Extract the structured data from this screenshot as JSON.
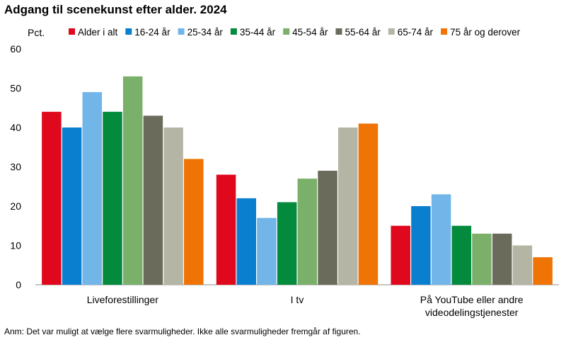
{
  "chart_data": {
    "type": "bar",
    "title": "Adgang til scenekunst efter alder. 2024",
    "ylabel": "Pct.",
    "xlabel": "",
    "ylim": [
      0,
      60
    ],
    "yticks": [
      0,
      10,
      20,
      30,
      40,
      50,
      60
    ],
    "legend_position": "top",
    "categories": [
      [
        "Liveforestillinger"
      ],
      [
        "I tv"
      ],
      [
        "På YouTube eller andre",
        "videodelingstjenester"
      ]
    ],
    "series": [
      {
        "name": "Alder i alt",
        "color": "#e0081c",
        "values": [
          44,
          28,
          15
        ]
      },
      {
        "name": "16-24 år",
        "color": "#0a7fd0",
        "values": [
          40,
          22,
          20
        ]
      },
      {
        "name": "25-34 år",
        "color": "#72b5e8",
        "values": [
          49,
          17,
          23
        ]
      },
      {
        "name": "35-44 år",
        "color": "#048a3c",
        "values": [
          44,
          21,
          15
        ]
      },
      {
        "name": "45-54 år",
        "color": "#7bb06b",
        "values": [
          53,
          27,
          13
        ]
      },
      {
        "name": "55-64 år",
        "color": "#6b6b5b",
        "values": [
          43,
          29,
          13
        ]
      },
      {
        "name": "65-74 år",
        "color": "#b5b5a5",
        "values": [
          40,
          40,
          10
        ]
      },
      {
        "name": "75 år og derover",
        "color": "#ef7405",
        "values": [
          32,
          41,
          7
        ]
      }
    ],
    "grid": false
  },
  "note": "Anm: Det var muligt at vælge flere svarmuligheder. Ikke alle svarmuligheder fremgår af figuren."
}
